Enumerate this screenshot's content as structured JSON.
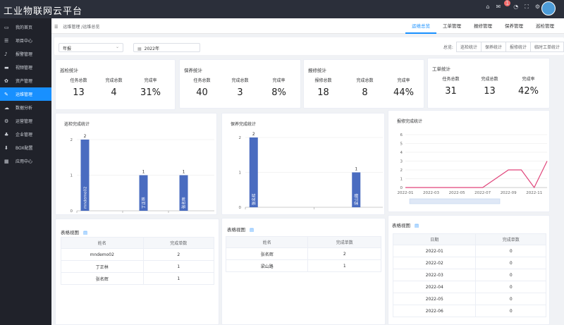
{
  "app": {
    "title": "工业物联网云平台",
    "notif_count": "1"
  },
  "sidebar": {
    "items": [
      {
        "label": "我的首页",
        "icon": "monitor-icon"
      },
      {
        "label": "项目中心",
        "icon": "list-icon"
      },
      {
        "label": "报警管理",
        "icon": "bell-icon"
      },
      {
        "label": "视频管理",
        "icon": "video-icon"
      },
      {
        "label": "资产管理",
        "icon": "gear-icon"
      },
      {
        "label": "运维管理",
        "icon": "wrench-icon"
      },
      {
        "label": "数据分析",
        "icon": "cloud-icon"
      },
      {
        "label": "运营管理",
        "icon": "cog-icon"
      },
      {
        "label": "企业管理",
        "icon": "org-icon"
      },
      {
        "label": "BOX配置",
        "icon": "download-icon"
      },
      {
        "label": "应用中心",
        "icon": "grid-icon"
      }
    ],
    "active_index": 5
  },
  "breadcrumb": "运维管理 /运维总览",
  "tabs": [
    "运维总览",
    "工单管理",
    "报修管理",
    "保养管理",
    "巡检管理"
  ],
  "filter": {
    "period": "年报",
    "date": "2022年",
    "quick_label": "总览:",
    "quick_buttons": [
      "巡检统计",
      "保养统计",
      "报修统计",
      "临时工单统计"
    ]
  },
  "stats": [
    {
      "title": "巡检统计",
      "labels": [
        "任务总数",
        "完成总数",
        "完成率"
      ],
      "values": [
        "13",
        "4",
        "31%"
      ]
    },
    {
      "title": "保养统计",
      "labels": [
        "任务总数",
        "完成总数",
        "完成率"
      ],
      "values": [
        "40",
        "3",
        "8%"
      ]
    },
    {
      "title": "报修统计",
      "labels": [
        "报修总数",
        "完成总数",
        "完成率"
      ],
      "values": [
        "18",
        "8",
        "44%"
      ]
    },
    {
      "title": "工单统计",
      "labels": [
        "任务总数",
        "完成总数",
        "完成率"
      ],
      "values": [
        "31",
        "13",
        "42%"
      ]
    }
  ],
  "chart_data": [
    {
      "type": "bar",
      "title": "巡检完成统计",
      "categories": [
        "mndemo02",
        "丁正林",
        "张名辉"
      ],
      "values": [
        2,
        1,
        1
      ],
      "ylim": [
        0,
        2
      ],
      "yticks": [
        0,
        1,
        2
      ],
      "color": "#4a6cc0"
    },
    {
      "type": "bar",
      "title": "保养完成统计",
      "categories": [
        "张名辉",
        "梁山路"
      ],
      "values": [
        2,
        1
      ],
      "ylim": [
        0,
        2
      ],
      "yticks": [
        0,
        1,
        2
      ],
      "color": "#4a6cc0"
    },
    {
      "type": "line",
      "title": "报修完成统计",
      "x": [
        "2022-01",
        "2022-02",
        "2022-03",
        "2022-04",
        "2022-05",
        "2022-06",
        "2022-07",
        "2022-08",
        "2022-09",
        "2022-10",
        "2022-11",
        "2022-12"
      ],
      "xticks": [
        "2022-01",
        "2022-03",
        "2022-05",
        "2022-07",
        "2022-09",
        "2022-11"
      ],
      "values": [
        0,
        0,
        0,
        0,
        0,
        0,
        0,
        1,
        2,
        2,
        0,
        3
      ],
      "ylim": [
        0,
        6
      ],
      "yticks": [
        0,
        1,
        2,
        3,
        4,
        5,
        6
      ],
      "color": "#e0457b"
    }
  ],
  "tables": [
    {
      "title": "表格视图",
      "headers": [
        "姓名",
        "完成单数"
      ],
      "rows": [
        [
          "mndemo02",
          "2"
        ],
        [
          "丁正林",
          "1"
        ],
        [
          "张名辉",
          "1"
        ]
      ]
    },
    {
      "title": "表格视图",
      "headers": [
        "姓名",
        "完成单数"
      ],
      "rows": [
        [
          "张名辉",
          "2"
        ],
        [
          "梁山路",
          "1"
        ]
      ]
    },
    {
      "title": "表格视图",
      "headers": [
        "日期",
        "完成单数"
      ],
      "rows": [
        [
          "2022-01",
          "0"
        ],
        [
          "2022-02",
          "0"
        ],
        [
          "2022-03",
          "0"
        ],
        [
          "2022-04",
          "0"
        ],
        [
          "2022-05",
          "0"
        ],
        [
          "2022-06",
          "0"
        ]
      ]
    }
  ]
}
